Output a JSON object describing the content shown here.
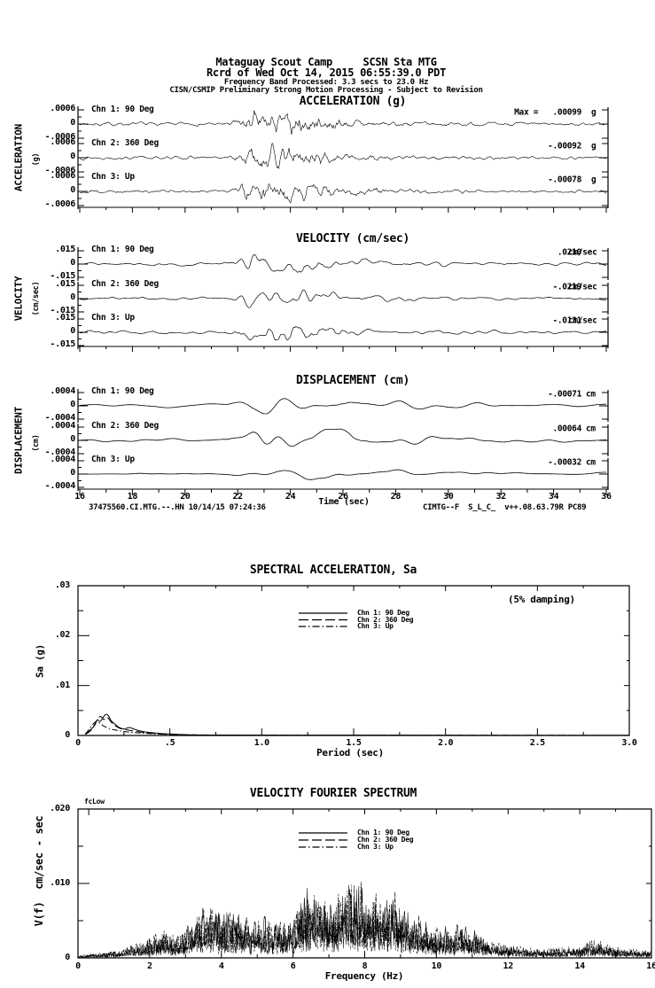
{
  "header": {
    "line1": "Mataguay Scout Camp     SCSN Sta MTG",
    "line2": "Rcrd of Wed Oct 14, 2015 06:55:39.0 PDT",
    "line3": "Frequency Band Processed: 3.3 secs to 23.0 Hz",
    "line4": "CISN/CSMIP Preliminary Strong Motion Processing - Subject to Revision"
  },
  "footer": {
    "left": "37475560.CI.MTG.--.HN 10/14/15 07:24:36",
    "right": "CIMTG--F  S_L_C_  v++.08.63.79R PC89"
  },
  "chart_data": [
    {
      "id": "waveform-triptych",
      "type": "line",
      "panels": [
        {
          "title": "ACCELERATION (g)",
          "side_label": "ACCELERATION",
          "side_unit": "(g)",
          "ylim": [
            -0.0006,
            0.0006
          ],
          "ytick_labels": [
            ".0006",
            "0",
            "-.0006"
          ],
          "channels": [
            {
              "label": "Chn 1: 90 Deg",
              "peak_text": "Max =   .00099",
              "unit": "g",
              "peak_value": 0.00099
            },
            {
              "label": "Chn 2: 360 Deg",
              "peak_text": "-.00092",
              "unit": "g",
              "peak_value": -0.00092
            },
            {
              "label": "Chn 3: Up",
              "peak_text": "-.00078",
              "unit": "g",
              "peak_value": -0.00078
            }
          ],
          "envelope": [
            [
              16,
              0.15
            ],
            [
              21.6,
              0.15
            ],
            [
              22.0,
              0.45
            ],
            [
              22.4,
              1.0
            ],
            [
              24.6,
              0.92
            ],
            [
              25.5,
              0.5
            ],
            [
              26.5,
              0.33
            ],
            [
              28,
              0.22
            ],
            [
              30,
              0.17
            ],
            [
              33,
              0.14
            ],
            [
              36,
              0.13
            ]
          ]
        },
        {
          "title": "VELOCITY (cm/sec)",
          "side_label": "VELOCITY",
          "side_unit": "(cm/sec)",
          "ylim": [
            -0.015,
            0.015
          ],
          "ytick_labels": [
            ".015",
            "0",
            "-.015"
          ],
          "channels": [
            {
              "label": "Chn 1: 90 Deg",
              "peak_text": ".0210",
              "unit": "cm/sec",
              "peak_value": 0.021
            },
            {
              "label": "Chn 2: 360 Deg",
              "peak_text": "-.0219",
              "unit": "cm/sec",
              "peak_value": -0.0219
            },
            {
              "label": "Chn 3: Up",
              "peak_text": "-.0131",
              "unit": "cm/sec",
              "peak_value": -0.0131
            }
          ],
          "envelope": [
            [
              16,
              0.13
            ],
            [
              21.4,
              0.13
            ],
            [
              22.0,
              0.5
            ],
            [
              22.6,
              1.0
            ],
            [
              24.8,
              0.88
            ],
            [
              26,
              0.45
            ],
            [
              27.5,
              0.3
            ],
            [
              29,
              0.2
            ],
            [
              31,
              0.15
            ],
            [
              36,
              0.11
            ]
          ]
        },
        {
          "title": "DISPLACEMENT (cm)",
          "side_label": "DISPLACEMENT",
          "side_unit": "(cm)",
          "ylim": [
            -0.0004,
            0.0004
          ],
          "ytick_labels": [
            ".0004",
            "0",
            "-.0004"
          ],
          "channels": [
            {
              "label": "Chn 1: 90 Deg",
              "peak_text": "-.00071",
              "unit": "cm",
              "peak_value": -0.00071
            },
            {
              "label": "Chn 2: 360 Deg",
              "peak_text": ".00064",
              "unit": "cm",
              "peak_value": 0.00064
            },
            {
              "label": "Chn 3: Up",
              "peak_text": "-.00032",
              "unit": "cm",
              "peak_value": -0.00032
            }
          ],
          "envelope": [
            [
              16,
              0.12
            ],
            [
              21.6,
              0.13
            ],
            [
              22.3,
              0.6
            ],
            [
              23.0,
              1.0
            ],
            [
              25.2,
              0.92
            ],
            [
              26.5,
              0.6
            ],
            [
              28,
              0.45
            ],
            [
              29.5,
              0.3
            ],
            [
              31.5,
              0.2
            ],
            [
              34,
              0.15
            ],
            [
              36,
              0.12
            ]
          ]
        }
      ],
      "time_axis": {
        "label": "Time (sec)",
        "xlim": [
          16,
          36
        ],
        "ticks": [
          16,
          18,
          20,
          22,
          24,
          26,
          28,
          30,
          32,
          34,
          36
        ]
      }
    },
    {
      "id": "spectral-acceleration",
      "type": "line",
      "title": "SPECTRAL ACCELERATION, Sa",
      "annotation": "(5% damping)",
      "xlabel": "Period (sec)",
      "ylabel": "Sa (g)",
      "xlim": [
        0,
        3.0
      ],
      "ylim": [
        0,
        0.03
      ],
      "xtick_labels": [
        "0",
        ".5",
        "1.0",
        "1.5",
        "2.0",
        "2.5",
        "3.0"
      ],
      "ytick_labels": [
        "0",
        ".01",
        ".02",
        ".03"
      ],
      "legend": [
        "Chn 1: 90 Deg",
        "Chn 2: 360 Deg",
        "Chn 3: Up"
      ],
      "series": [
        {
          "name": "Chn 1: 90 Deg",
          "style": "solid",
          "points": [
            [
              0.04,
              0.0002
            ],
            [
              0.07,
              0.0012
            ],
            [
              0.09,
              0.002
            ],
            [
              0.105,
              0.0031
            ],
            [
              0.12,
              0.0028
            ],
            [
              0.135,
              0.0035
            ],
            [
              0.15,
              0.0042
            ],
            [
              0.165,
              0.004
            ],
            [
              0.18,
              0.003
            ],
            [
              0.2,
              0.0023
            ],
            [
              0.22,
              0.0017
            ],
            [
              0.25,
              0.0013
            ],
            [
              0.28,
              0.0016
            ],
            [
              0.31,
              0.0012
            ],
            [
              0.35,
              0.0008
            ],
            [
              0.42,
              0.0005
            ],
            [
              0.5,
              0.0003
            ],
            [
              0.6,
              0.00015
            ],
            [
              0.8,
              8e-05
            ],
            [
              1.2,
              5e-05
            ],
            [
              2.0,
              3e-05
            ],
            [
              3.0,
              2e-05
            ]
          ]
        },
        {
          "name": "Chn 2: 360 Deg",
          "style": "dash",
          "points": [
            [
              0.04,
              0.0002
            ],
            [
              0.07,
              0.001
            ],
            [
              0.09,
              0.0022
            ],
            [
              0.11,
              0.0035
            ],
            [
              0.125,
              0.0038
            ],
            [
              0.14,
              0.0032
            ],
            [
              0.16,
              0.0036
            ],
            [
              0.18,
              0.0027
            ],
            [
              0.2,
              0.002
            ],
            [
              0.23,
              0.0014
            ],
            [
              0.27,
              0.0011
            ],
            [
              0.3,
              0.0009
            ],
            [
              0.36,
              0.0006
            ],
            [
              0.45,
              0.0003
            ],
            [
              0.6,
              0.00012
            ],
            [
              0.9,
              6e-05
            ],
            [
              1.5,
              4e-05
            ],
            [
              3.0,
              2e-05
            ]
          ]
        },
        {
          "name": "Chn 3: Up",
          "style": "dashdot",
          "points": [
            [
              0.04,
              0.0003
            ],
            [
              0.06,
              0.0012
            ],
            [
              0.08,
              0.0022
            ],
            [
              0.1,
              0.0028
            ],
            [
              0.12,
              0.0024
            ],
            [
              0.14,
              0.0019
            ],
            [
              0.17,
              0.0014
            ],
            [
              0.2,
              0.0011
            ],
            [
              0.25,
              0.0008
            ],
            [
              0.3,
              0.0006
            ],
            [
              0.38,
              0.0004
            ],
            [
              0.5,
              0.0002
            ],
            [
              0.7,
              0.0001
            ],
            [
              1.0,
              5e-05
            ],
            [
              3.0,
              2e-05
            ]
          ]
        }
      ]
    },
    {
      "id": "velocity-fourier-spectrum",
      "type": "line",
      "title": "VELOCITY FOURIER SPECTRUM",
      "corner_label": "fcLow",
      "xlabel": "Frequency (Hz)",
      "ylabel": "V(f)  cm/sec - sec",
      "xlim": [
        0,
        16
      ],
      "ylim": [
        0,
        0.02
      ],
      "xtick_labels": [
        "0",
        "2",
        "4",
        "6",
        "8",
        "10",
        "12",
        "14",
        "16"
      ],
      "ytick_labels": [
        "0",
        ".010",
        ".020"
      ],
      "legend": [
        "Chn 1: 90 Deg",
        "Chn 2: 360 Deg",
        "Chn 3: Up"
      ],
      "envelope": [
        [
          0,
          0.0003
        ],
        [
          0.4,
          0.0005
        ],
        [
          0.8,
          0.0008
        ],
        [
          1.2,
          0.0011
        ],
        [
          1.6,
          0.0016
        ],
        [
          2.0,
          0.0026
        ],
        [
          2.4,
          0.0036
        ],
        [
          2.8,
          0.003
        ],
        [
          3.2,
          0.0048
        ],
        [
          3.6,
          0.0064
        ],
        [
          4.0,
          0.0058
        ],
        [
          4.4,
          0.0068
        ],
        [
          4.8,
          0.0046
        ],
        [
          5.2,
          0.0054
        ],
        [
          5.6,
          0.0046
        ],
        [
          6.0,
          0.005
        ],
        [
          6.4,
          0.0102
        ],
        [
          6.8,
          0.0082
        ],
        [
          7.2,
          0.0078
        ],
        [
          7.6,
          0.0112
        ],
        [
          8.0,
          0.0084
        ],
        [
          8.4,
          0.008
        ],
        [
          8.8,
          0.0086
        ],
        [
          9.2,
          0.006
        ],
        [
          9.6,
          0.0048
        ],
        [
          10.0,
          0.004
        ],
        [
          10.4,
          0.0038
        ],
        [
          10.8,
          0.0044
        ],
        [
          11.2,
          0.003
        ],
        [
          11.6,
          0.002
        ],
        [
          12.0,
          0.0016
        ],
        [
          12.5,
          0.0013
        ],
        [
          13.0,
          0.0012
        ],
        [
          13.5,
          0.0013
        ],
        [
          14.0,
          0.0015
        ],
        [
          14.5,
          0.0024
        ],
        [
          15.0,
          0.0013
        ],
        [
          15.5,
          0.0011
        ],
        [
          16.0,
          0.001
        ]
      ],
      "series": [
        {
          "name": "Chn 1: 90 Deg",
          "style": "solid",
          "seed": 101
        },
        {
          "name": "Chn 2: 360 Deg",
          "style": "dash",
          "seed": 202
        },
        {
          "name": "Chn 3: Up",
          "style": "dashdot",
          "seed": 303
        }
      ]
    }
  ]
}
